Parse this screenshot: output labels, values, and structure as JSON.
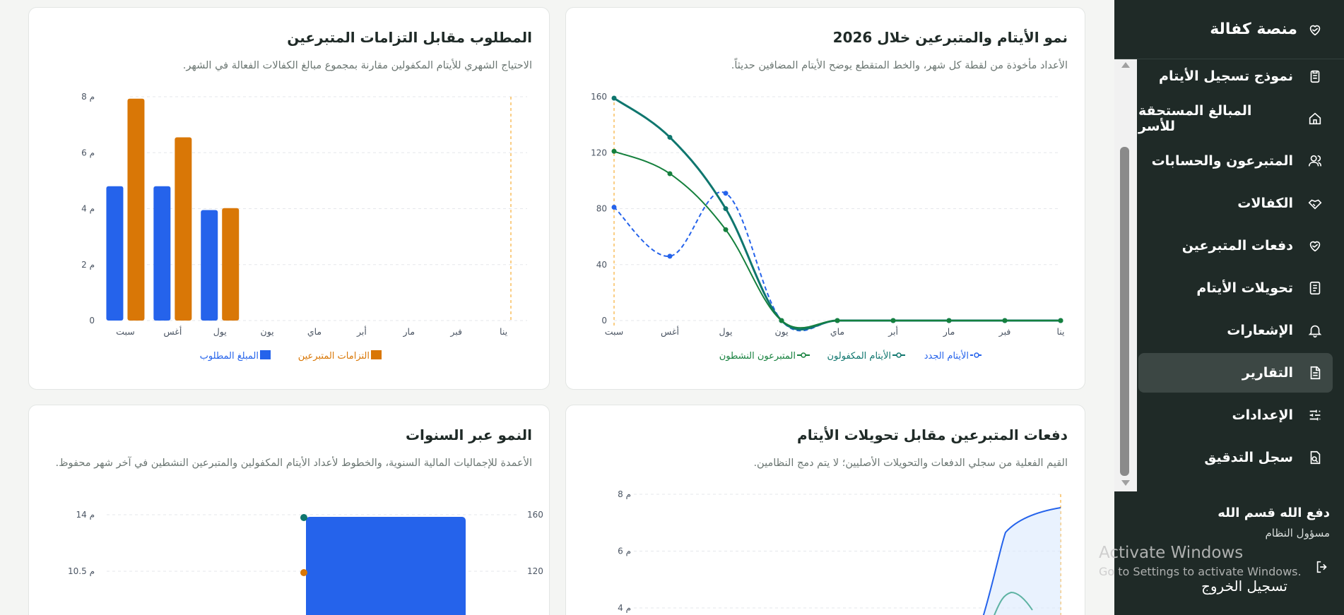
{
  "sidebar": {
    "brand": "منصة كفالة",
    "items": [
      {
        "label": "نموذج تسجيل الأيتام",
        "icon": "clipboard-icon"
      },
      {
        "label": "المبالغ المستحقة للأسر",
        "icon": "home-icon"
      },
      {
        "label": "المتبرعون والحسابات",
        "icon": "users-icon"
      },
      {
        "label": "الكفالات",
        "icon": "handshake-icon"
      },
      {
        "label": "دفعات المتبرعين",
        "icon": "heart-hand-icon"
      },
      {
        "label": "تحويلات الأيتام",
        "icon": "document-icon"
      },
      {
        "label": "الإشعارات",
        "icon": "bell-icon"
      },
      {
        "label": "التقارير",
        "icon": "report-icon"
      },
      {
        "label": "الإعدادات",
        "icon": "sliders-icon"
      },
      {
        "label": "سجل التدقيق",
        "icon": "audit-icon"
      }
    ],
    "active_index": 7,
    "user_name": "دفع الله قسم الله",
    "user_role": "مسؤول النظام",
    "logout": "تسجيل الخروج"
  },
  "watermark": {
    "title": "Activate Windows",
    "subtitle": "Go to Settings to activate Windows."
  },
  "cards": {
    "growth": {
      "title": "نمو الأيتام والمتبرعين خلال 2026",
      "subtitle": "الأعداد مأخوذة من لقطة كل شهر، والخط المتقطع يوضح الأيتام المضافين حديثاً."
    },
    "required": {
      "title": "المطلوب مقابل التزامات المتبرعين",
      "subtitle": "الاحتياج الشهري للأيتام المكفولين مقارنة بمجموع مبالغ الكفالات الفعالة في الشهر."
    },
    "payments": {
      "title": "دفعات المتبرعين مقابل تحويلات الأيتام",
      "subtitle": "القيم الفعلية من سجلي الدفعات والتحويلات الأصليين؛ لا يتم دمج النظامين."
    },
    "yearly": {
      "title": "النمو عبر السنوات",
      "subtitle": "الأعمدة للإجماليات المالية السنوية، والخطوط لأعداد الأيتام المكفولين والمتبرعين النشطين في آخر شهر محفوظ."
    }
  },
  "chart_data": [
    {
      "type": "line",
      "x": [
        "ينا",
        "فبر",
        "مار",
        "أبر",
        "ماي",
        "يون",
        "يول",
        "أغس",
        "سبت"
      ],
      "yticks": [
        "0",
        "40",
        "80",
        "120",
        "160"
      ],
      "ylim": [
        0,
        160
      ],
      "series": [
        {
          "name": "الأيتام الجدد",
          "values": [
            0,
            0,
            0,
            0,
            0,
            0,
            91,
            46,
            81
          ],
          "color": "#2563eb",
          "dashed": true
        },
        {
          "name": "الأيتام المكفولون",
          "values": [
            0,
            0,
            0,
            0,
            0,
            0,
            80,
            131,
            159
          ],
          "color": "#0f766e",
          "dashed": false
        },
        {
          "name": "المتبرعون النشطون",
          "values": [
            0,
            0,
            0,
            0,
            0,
            0,
            65,
            105,
            121
          ],
          "color": "#15803d",
          "dashed": false
        }
      ],
      "legend_position": "bottom",
      "grid": true
    },
    {
      "type": "bar",
      "categories": [
        "ينا",
        "فبر",
        "مار",
        "أبر",
        "ماي",
        "يون",
        "يول",
        "أغس",
        "سبت"
      ],
      "yticks": [
        "0",
        "م 2",
        "م 4",
        "م 6",
        "م 8"
      ],
      "ylim": [
        0,
        8
      ],
      "series": [
        {
          "name": "المبلغ المطلوب",
          "values": [
            0,
            0,
            0,
            0,
            0,
            0,
            3.95,
            4.8,
            4.8
          ],
          "color": "#2563eb"
        },
        {
          "name": "التزامات المتبرعين",
          "values": [
            0,
            0,
            0,
            0,
            0,
            0,
            4.02,
            6.55,
            7.93
          ],
          "color": "#d97706"
        }
      ],
      "legend_position": "bottom",
      "grid": true
    },
    {
      "type": "area",
      "yticks": [
        "م 4",
        "م 6",
        "م 8"
      ],
      "ylim": [
        4,
        8
      ],
      "grid": true
    },
    {
      "type": "bar",
      "left_yticks": [
        "120",
        "160"
      ],
      "right_yticks": [
        "م 10.5",
        "م 14"
      ],
      "grid": true
    }
  ]
}
